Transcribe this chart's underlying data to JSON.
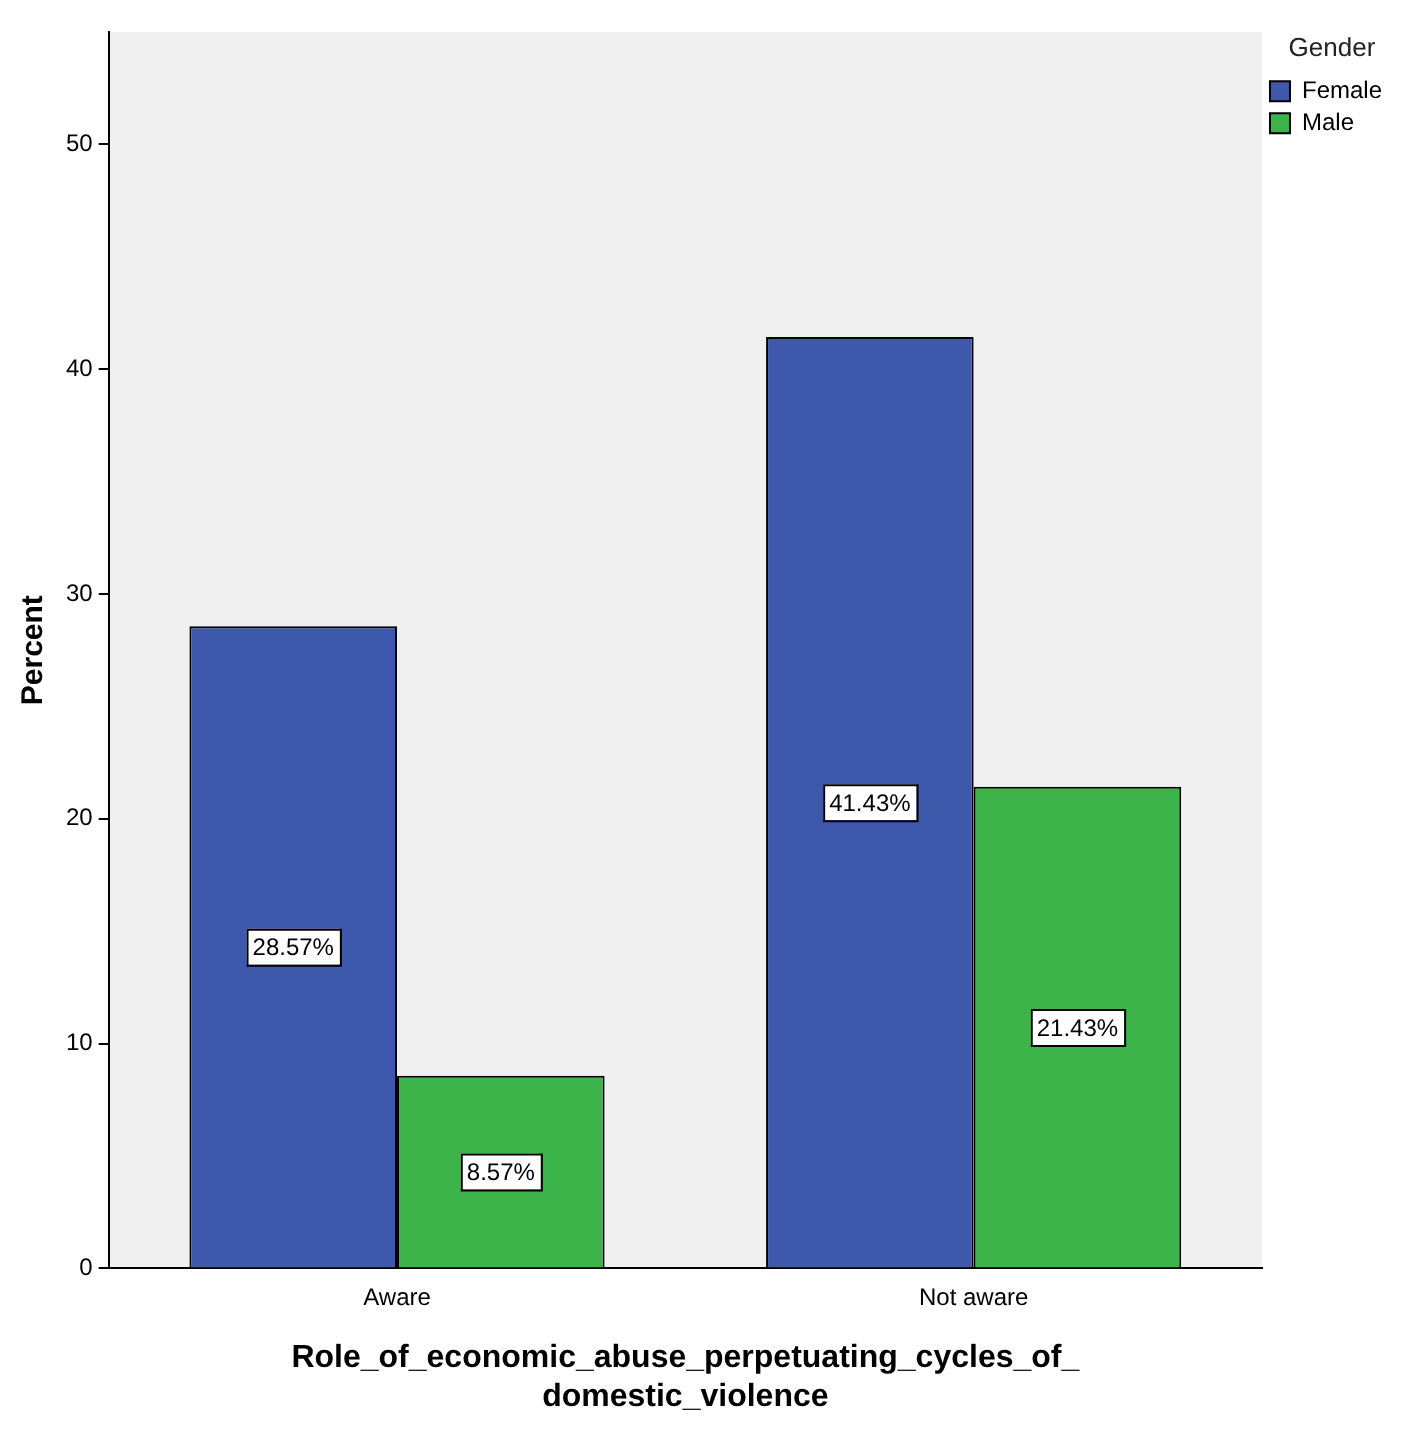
{
  "chart_data": {
    "type": "bar",
    "xlabel": "Role_of_economic_abuse_perpetuating_cycles_of_domestic_violence",
    "ylabel": "Percent",
    "legend_title": "Gender",
    "categories": [
      "Aware",
      "Not aware"
    ],
    "series": [
      {
        "name": "Female",
        "color": "#3e58ac",
        "values": [
          28.57,
          41.43
        ],
        "value_labels": [
          "28.57%",
          "41.43%"
        ]
      },
      {
        "name": "Male",
        "color": "#3cb44a",
        "values": [
          8.57,
          21.43
        ],
        "value_labels": [
          "8.57%",
          "21.43%"
        ]
      }
    ],
    "ylim": [
      0,
      55
    ],
    "yticks": [
      0,
      10,
      20,
      30,
      40,
      50
    ],
    "grid": false,
    "legend": "top right"
  }
}
